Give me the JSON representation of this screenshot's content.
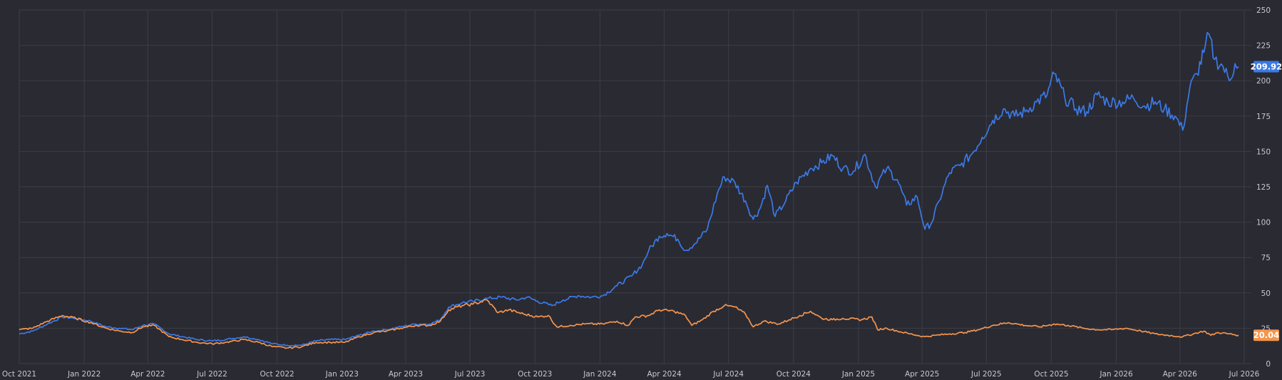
{
  "chart_data": {
    "type": "line",
    "title": "",
    "xlabel": "",
    "ylabel": "",
    "x_ticks": [
      "Oct 2021",
      "Jan 2022",
      "Apr 2022",
      "Jul 2022",
      "Oct 2022",
      "Jan 2023",
      "Apr 2023",
      "Jul 2023",
      "Oct 2023",
      "Jan 2024",
      "Apr 2024",
      "Jul 2024",
      "Oct 2024",
      "Jan 2025",
      "Apr 2025",
      "Jul 2025",
      "Oct 2025",
      "Jan 2026",
      "Apr 2026",
      "Jul 2026"
    ],
    "y_ticks": [
      0,
      25,
      50,
      75,
      100,
      125,
      150,
      175,
      200,
      225,
      250
    ],
    "ylim": [
      0,
      250
    ],
    "y_axis_side": "right",
    "grid": true,
    "series": [
      {
        "name": "",
        "color": "#3b7ae6",
        "last_value_label": "209.92",
        "points": [
          [
            "2021-10-01",
            21
          ],
          [
            "2021-10-20",
            23
          ],
          [
            "2021-11-10",
            28
          ],
          [
            "2021-12-01",
            33
          ],
          [
            "2021-12-20",
            32
          ],
          [
            "2022-01-10",
            30
          ],
          [
            "2022-02-01",
            26
          ],
          [
            "2022-02-20",
            25
          ],
          [
            "2022-03-10",
            24
          ],
          [
            "2022-03-25",
            27
          ],
          [
            "2022-04-10",
            28
          ],
          [
            "2022-05-01",
            21
          ],
          [
            "2022-05-20",
            19
          ],
          [
            "2022-06-10",
            17
          ],
          [
            "2022-07-01",
            16
          ],
          [
            "2022-07-20",
            17
          ],
          [
            "2022-08-15",
            19
          ],
          [
            "2022-09-05",
            17
          ],
          [
            "2022-09-25",
            14
          ],
          [
            "2022-10-15",
            13
          ],
          [
            "2022-11-05",
            13
          ],
          [
            "2022-11-25",
            16
          ],
          [
            "2022-12-15",
            17
          ],
          [
            "2023-01-05",
            17
          ],
          [
            "2023-01-25",
            20
          ],
          [
            "2023-02-15",
            23
          ],
          [
            "2023-03-05",
            24
          ],
          [
            "2023-03-25",
            26
          ],
          [
            "2023-04-15",
            28
          ],
          [
            "2023-05-05",
            28
          ],
          [
            "2023-05-20",
            31
          ],
          [
            "2023-06-01",
            40
          ],
          [
            "2023-06-20",
            43
          ],
          [
            "2023-07-05",
            44
          ],
          [
            "2023-07-25",
            46
          ],
          [
            "2023-08-15",
            47
          ],
          [
            "2023-09-05",
            45
          ],
          [
            "2023-09-20",
            47
          ],
          [
            "2023-10-05",
            44
          ],
          [
            "2023-10-25",
            41
          ],
          [
            "2023-11-10",
            45
          ],
          [
            "2023-12-01",
            48
          ],
          [
            "2023-12-20",
            47
          ],
          [
            "2024-01-05",
            48
          ],
          [
            "2024-01-25",
            55
          ],
          [
            "2024-02-15",
            62
          ],
          [
            "2024-03-01",
            70
          ],
          [
            "2024-03-10",
            80
          ],
          [
            "2024-03-25",
            90
          ],
          [
            "2024-04-05",
            92
          ],
          [
            "2024-04-20",
            88
          ],
          [
            "2024-05-01",
            80
          ],
          [
            "2024-05-15",
            85
          ],
          [
            "2024-06-01",
            95
          ],
          [
            "2024-06-15",
            120
          ],
          [
            "2024-06-25",
            132
          ],
          [
            "2024-07-10",
            128
          ],
          [
            "2024-07-25",
            115
          ],
          [
            "2024-08-05",
            102
          ],
          [
            "2024-08-15",
            110
          ],
          [
            "2024-08-25",
            126
          ],
          [
            "2024-09-05",
            104
          ],
          [
            "2024-09-20",
            115
          ],
          [
            "2024-10-05",
            128
          ],
          [
            "2024-10-25",
            138
          ],
          [
            "2024-11-10",
            142
          ],
          [
            "2024-11-25",
            147
          ],
          [
            "2024-12-10",
            138
          ],
          [
            "2024-12-25",
            136
          ],
          [
            "2025-01-10",
            148
          ],
          [
            "2025-01-25",
            125
          ],
          [
            "2025-02-10",
            138
          ],
          [
            "2025-02-25",
            130
          ],
          [
            "2025-03-10",
            112
          ],
          [
            "2025-03-25",
            118
          ],
          [
            "2025-04-05",
            95
          ],
          [
            "2025-04-15",
            100
          ],
          [
            "2025-04-25",
            115
          ],
          [
            "2025-05-10",
            135
          ],
          [
            "2025-05-25",
            140
          ],
          [
            "2025-06-10",
            148
          ],
          [
            "2025-06-25",
            160
          ],
          [
            "2025-07-10",
            172
          ],
          [
            "2025-07-25",
            180
          ],
          [
            "2025-08-10",
            175
          ],
          [
            "2025-08-25",
            178
          ],
          [
            "2025-09-10",
            185
          ],
          [
            "2025-09-25",
            190
          ],
          [
            "2025-10-05",
            205
          ],
          [
            "2025-10-20",
            188
          ],
          [
            "2025-11-05",
            180
          ],
          [
            "2025-11-20",
            178
          ],
          [
            "2025-12-05",
            190
          ],
          [
            "2025-12-20",
            185
          ],
          [
            "2026-01-10",
            185
          ],
          [
            "2026-01-25",
            188
          ],
          [
            "2026-02-10",
            182
          ],
          [
            "2026-02-25",
            185
          ],
          [
            "2026-03-10",
            180
          ],
          [
            "2026-03-25",
            175
          ],
          [
            "2026-04-05",
            165
          ],
          [
            "2026-04-15",
            195
          ],
          [
            "2026-04-25",
            205
          ],
          [
            "2026-05-05",
            220
          ],
          [
            "2026-05-12",
            233
          ],
          [
            "2026-05-20",
            215
          ],
          [
            "2026-06-01",
            210
          ],
          [
            "2026-06-10",
            200
          ],
          [
            "2026-06-18",
            212
          ],
          [
            "2026-06-23",
            209.92
          ]
        ]
      },
      {
        "name": "",
        "color": "#f5954c",
        "last_value_label": "20.04",
        "points": [
          [
            "2021-10-01",
            24
          ],
          [
            "2021-10-20",
            25
          ],
          [
            "2021-11-10",
            30
          ],
          [
            "2021-12-01",
            34
          ],
          [
            "2021-12-20",
            32
          ],
          [
            "2022-01-10",
            29
          ],
          [
            "2022-02-01",
            25
          ],
          [
            "2022-02-20",
            23
          ],
          [
            "2022-03-10",
            22
          ],
          [
            "2022-03-25",
            26
          ],
          [
            "2022-04-10",
            27
          ],
          [
            "2022-05-01",
            19
          ],
          [
            "2022-05-20",
            17
          ],
          [
            "2022-06-10",
            15
          ],
          [
            "2022-07-01",
            14
          ],
          [
            "2022-07-20",
            15
          ],
          [
            "2022-08-15",
            17
          ],
          [
            "2022-09-05",
            15
          ],
          [
            "2022-09-25",
            12
          ],
          [
            "2022-10-15",
            11
          ],
          [
            "2022-11-05",
            12
          ],
          [
            "2022-11-25",
            15
          ],
          [
            "2022-12-15",
            15
          ],
          [
            "2023-01-05",
            15
          ],
          [
            "2023-01-25",
            19
          ],
          [
            "2023-02-15",
            22
          ],
          [
            "2023-03-05",
            23
          ],
          [
            "2023-03-25",
            25
          ],
          [
            "2023-04-15",
            27
          ],
          [
            "2023-05-05",
            27
          ],
          [
            "2023-05-20",
            30
          ],
          [
            "2023-06-01",
            38
          ],
          [
            "2023-06-20",
            41
          ],
          [
            "2023-07-05",
            42
          ],
          [
            "2023-07-25",
            45
          ],
          [
            "2023-08-10",
            36
          ],
          [
            "2023-08-25",
            38
          ],
          [
            "2023-09-15",
            35
          ],
          [
            "2023-10-05",
            33
          ],
          [
            "2023-10-20",
            34
          ],
          [
            "2023-11-01",
            26
          ],
          [
            "2023-11-20",
            27
          ],
          [
            "2023-12-10",
            28
          ],
          [
            "2024-01-05",
            28
          ],
          [
            "2024-01-25",
            30
          ],
          [
            "2024-02-10",
            27
          ],
          [
            "2024-02-20",
            33
          ],
          [
            "2024-03-10",
            34
          ],
          [
            "2024-03-25",
            38
          ],
          [
            "2024-04-15",
            37
          ],
          [
            "2024-05-01",
            34
          ],
          [
            "2024-05-10",
            27
          ],
          [
            "2024-05-25",
            31
          ],
          [
            "2024-06-10",
            37
          ],
          [
            "2024-06-25",
            41
          ],
          [
            "2024-07-10",
            40
          ],
          [
            "2024-07-25",
            35
          ],
          [
            "2024-08-05",
            26
          ],
          [
            "2024-08-20",
            30
          ],
          [
            "2024-09-10",
            28
          ],
          [
            "2024-09-25",
            31
          ],
          [
            "2024-10-10",
            34
          ],
          [
            "2024-10-25",
            37
          ],
          [
            "2024-11-10",
            32
          ],
          [
            "2024-11-25",
            31
          ],
          [
            "2024-12-10",
            32
          ],
          [
            "2025-01-05",
            31
          ],
          [
            "2025-01-20",
            33
          ],
          [
            "2025-01-28",
            24
          ],
          [
            "2025-02-10",
            25
          ],
          [
            "2025-02-25",
            23
          ],
          [
            "2025-03-15",
            21
          ],
          [
            "2025-04-05",
            19
          ],
          [
            "2025-04-20",
            20
          ],
          [
            "2025-05-10",
            21
          ],
          [
            "2025-06-01",
            22
          ],
          [
            "2025-06-20",
            24
          ],
          [
            "2025-07-10",
            27
          ],
          [
            "2025-08-01",
            29
          ],
          [
            "2025-08-25",
            27
          ],
          [
            "2025-09-15",
            26
          ],
          [
            "2025-10-05",
            28
          ],
          [
            "2025-10-25",
            27
          ],
          [
            "2025-11-15",
            25
          ],
          [
            "2025-12-05",
            24
          ],
          [
            "2025-12-25",
            24
          ],
          [
            "2026-01-15",
            25
          ],
          [
            "2026-02-05",
            23
          ],
          [
            "2026-02-25",
            21
          ],
          [
            "2026-03-15",
            20
          ],
          [
            "2026-04-05",
            19
          ],
          [
            "2026-04-20",
            21
          ],
          [
            "2026-05-05",
            23
          ],
          [
            "2026-05-15",
            20
          ],
          [
            "2026-05-25",
            22
          ],
          [
            "2026-06-10",
            21
          ],
          [
            "2026-06-23",
            20.04
          ]
        ]
      }
    ]
  }
}
